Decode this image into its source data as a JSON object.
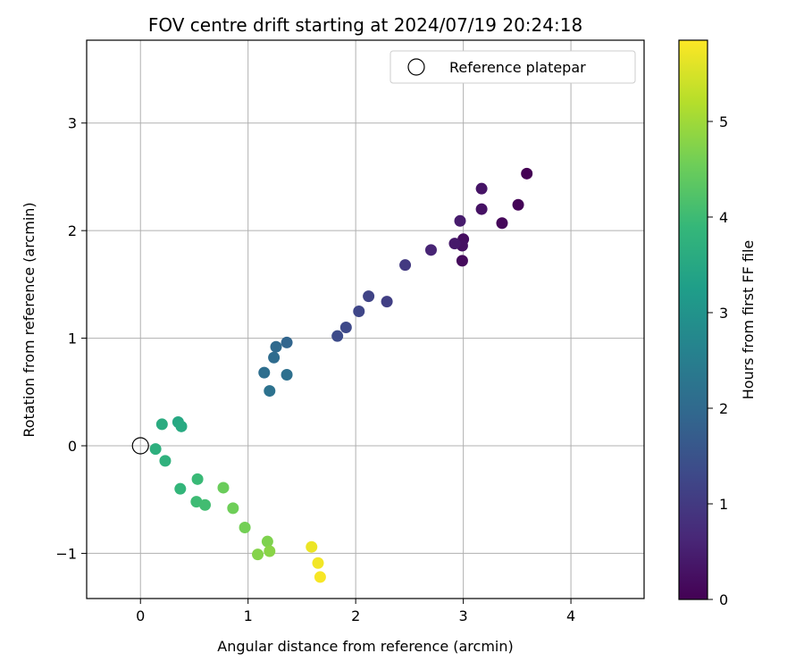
{
  "chart_data": {
    "type": "scatter",
    "title": "FOV centre drift starting at 2024/07/19 20:24:18",
    "xlabel": "Angular distance from reference (arcmin)",
    "ylabel": "Rotation from reference (arcmin)",
    "xlim": [
      -0.5,
      4.68
    ],
    "ylim": [
      -1.42,
      3.77
    ],
    "x_ticks": [
      0,
      1,
      2,
      3,
      4
    ],
    "x_tick_labels": [
      "0",
      "1",
      "2",
      "3",
      "4"
    ],
    "y_ticks": [
      -1,
      0,
      1,
      2,
      3
    ],
    "y_tick_labels": [
      "−1",
      "0",
      "1",
      "2",
      "3"
    ],
    "grid": true,
    "legend": {
      "position": "upper-right",
      "entries": [
        "Reference platepar"
      ]
    },
    "reference_point": {
      "x": 0,
      "y": 0,
      "label": "Reference platepar"
    },
    "colorbar": {
      "label": "Hours from first FF file",
      "range": [
        0,
        5.85
      ],
      "ticks": [
        0,
        1,
        2,
        3,
        4,
        5
      ],
      "tick_labels": [
        "0",
        "1",
        "2",
        "3",
        "4",
        "5"
      ],
      "colormap": "viridis",
      "colors": [
        "#440154",
        "#482878",
        "#3e4989",
        "#31688e",
        "#26828e",
        "#1f9e89",
        "#35b779",
        "#6ece58",
        "#b5de2b",
        "#fde725"
      ]
    },
    "points": [
      {
        "x": 3.59,
        "y": 2.53,
        "hours": 0.0
      },
      {
        "x": 3.51,
        "y": 2.24,
        "hours": 0.05
      },
      {
        "x": 3.36,
        "y": 2.07,
        "hours": 0.1
      },
      {
        "x": 2.99,
        "y": 1.72,
        "hours": 0.15
      },
      {
        "x": 3.0,
        "y": 1.92,
        "hours": 0.2
      },
      {
        "x": 2.99,
        "y": 1.86,
        "hours": 0.25
      },
      {
        "x": 3.17,
        "y": 2.2,
        "hours": 0.28
      },
      {
        "x": 3.17,
        "y": 2.39,
        "hours": 0.32
      },
      {
        "x": 2.92,
        "y": 1.88,
        "hours": 0.4
      },
      {
        "x": 2.97,
        "y": 2.09,
        "hours": 0.45
      },
      {
        "x": 2.7,
        "y": 1.82,
        "hours": 0.6
      },
      {
        "x": 2.46,
        "y": 1.68,
        "hours": 1.0
      },
      {
        "x": 2.29,
        "y": 1.34,
        "hours": 1.1
      },
      {
        "x": 2.12,
        "y": 1.39,
        "hours": 1.2
      },
      {
        "x": 2.03,
        "y": 1.25,
        "hours": 1.25
      },
      {
        "x": 1.91,
        "y": 1.1,
        "hours": 1.3
      },
      {
        "x": 1.83,
        "y": 1.02,
        "hours": 1.35
      },
      {
        "x": 1.36,
        "y": 0.96,
        "hours": 1.9
      },
      {
        "x": 1.26,
        "y": 0.92,
        "hours": 2.0
      },
      {
        "x": 1.24,
        "y": 0.82,
        "hours": 2.05
      },
      {
        "x": 1.15,
        "y": 0.68,
        "hours": 2.1
      },
      {
        "x": 1.36,
        "y": 0.66,
        "hours": 2.15
      },
      {
        "x": 1.2,
        "y": 0.51,
        "hours": 2.2
      },
      {
        "x": 0.2,
        "y": 0.2,
        "hours": 3.6
      },
      {
        "x": 0.35,
        "y": 0.22,
        "hours": 3.5
      },
      {
        "x": 0.38,
        "y": 0.18,
        "hours": 3.55
      },
      {
        "x": 0.14,
        "y": -0.03,
        "hours": 3.7
      },
      {
        "x": 0.23,
        "y": -0.14,
        "hours": 3.75
      },
      {
        "x": 0.37,
        "y": -0.4,
        "hours": 3.85
      },
      {
        "x": 0.53,
        "y": -0.31,
        "hours": 3.95
      },
      {
        "x": 0.52,
        "y": -0.52,
        "hours": 4.0
      },
      {
        "x": 0.6,
        "y": -0.55,
        "hours": 4.05
      },
      {
        "x": 0.77,
        "y": -0.39,
        "hours": 4.5
      },
      {
        "x": 0.86,
        "y": -0.58,
        "hours": 4.55
      },
      {
        "x": 0.97,
        "y": -0.76,
        "hours": 4.6
      },
      {
        "x": 1.18,
        "y": -0.89,
        "hours": 4.7
      },
      {
        "x": 1.09,
        "y": -1.01,
        "hours": 4.75
      },
      {
        "x": 1.2,
        "y": -0.98,
        "hours": 4.8
      },
      {
        "x": 1.59,
        "y": -0.94,
        "hours": 5.7
      },
      {
        "x": 1.65,
        "y": -1.09,
        "hours": 5.75
      },
      {
        "x": 1.67,
        "y": -1.22,
        "hours": 5.8
      }
    ]
  }
}
